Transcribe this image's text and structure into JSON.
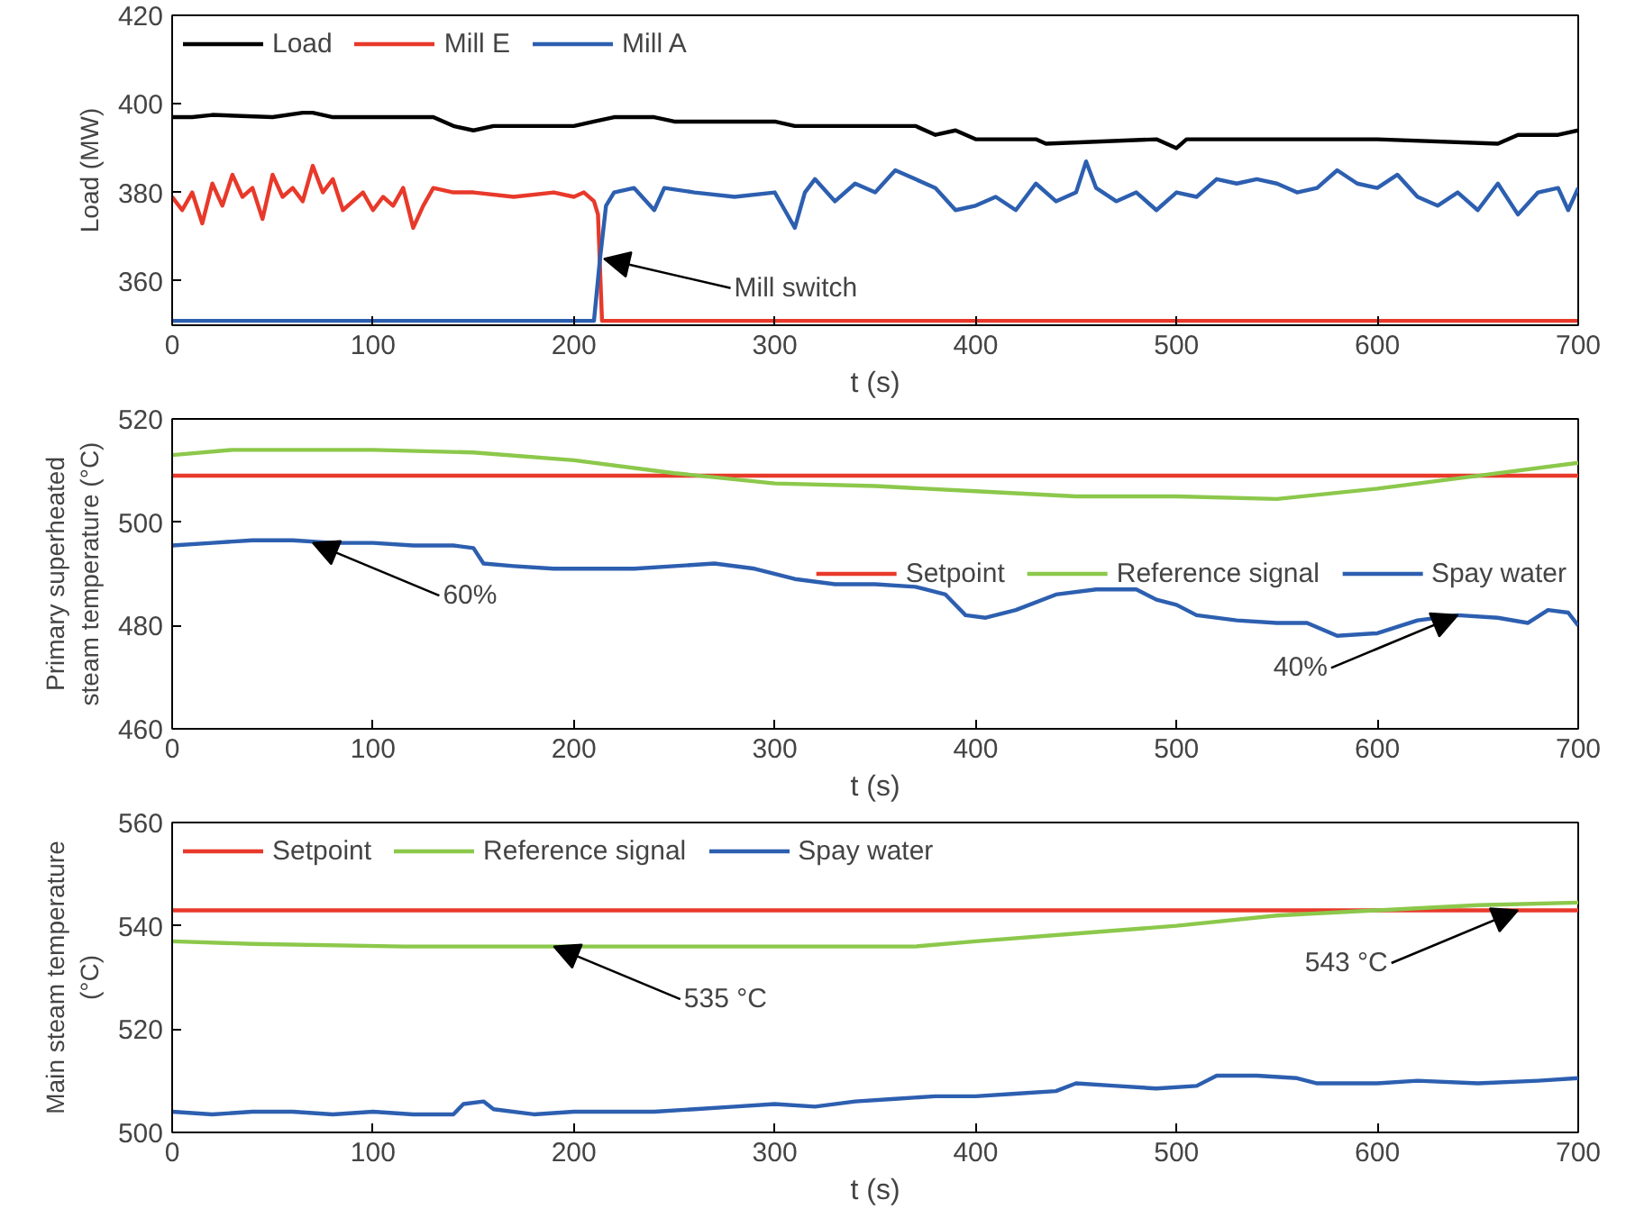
{
  "chart_data": [
    {
      "type": "line",
      "xlabel": "t (s)",
      "ylabel": "Load (MW)",
      "xlim": [
        0,
        700
      ],
      "xticks": [
        0,
        100,
        200,
        300,
        400,
        500,
        600,
        700
      ],
      "ylim": [
        350,
        420
      ],
      "yticks": [
        360,
        380,
        400,
        420
      ],
      "grid": false,
      "legend": "top left",
      "line_style": "solid",
      "marker": "none",
      "annotations": [
        {
          "text": "Mill switch",
          "x": 215,
          "y": 365
        }
      ],
      "series": [
        {
          "name": "Load",
          "color": "#000000",
          "x": [
            0,
            10,
            20,
            50,
            65,
            70,
            80,
            130,
            140,
            150,
            160,
            200,
            210,
            220,
            240,
            250,
            300,
            310,
            370,
            380,
            390,
            400,
            430,
            435,
            490,
            500,
            505,
            600,
            660,
            670,
            690,
            700
          ],
          "values": [
            397,
            397,
            397.5,
            397,
            398,
            398,
            397,
            397,
            395,
            394,
            395,
            395,
            396,
            397,
            397,
            396,
            396,
            395,
            395,
            393,
            394,
            392,
            392,
            391,
            392,
            390,
            392,
            392,
            391,
            393,
            393,
            394
          ]
        },
        {
          "name": "Mill E",
          "color": "#e8392a",
          "x": [
            0,
            5,
            10,
            15,
            20,
            25,
            30,
            35,
            40,
            45,
            50,
            55,
            60,
            65,
            70,
            75,
            80,
            85,
            90,
            95,
            100,
            105,
            110,
            115,
            120,
            125,
            130,
            140,
            150,
            170,
            190,
            200,
            205,
            210,
            212,
            214,
            700
          ],
          "values": [
            379,
            376,
            380,
            373,
            382,
            377,
            384,
            379,
            381,
            374,
            384,
            379,
            381,
            378,
            386,
            380,
            383,
            376,
            378,
            380,
            376,
            379,
            377,
            381,
            372,
            377,
            381,
            380,
            380,
            379,
            380,
            379,
            380,
            378,
            375,
            351,
            351
          ]
        },
        {
          "name": "Mill A",
          "color": "#2d5fb0",
          "x": [
            0,
            210,
            213,
            216,
            220,
            230,
            240,
            245,
            260,
            280,
            300,
            305,
            310,
            315,
            320,
            330,
            340,
            350,
            360,
            370,
            380,
            390,
            400,
            410,
            420,
            430,
            440,
            450,
            455,
            460,
            470,
            480,
            490,
            500,
            510,
            520,
            530,
            540,
            550,
            560,
            570,
            580,
            590,
            600,
            610,
            620,
            630,
            640,
            650,
            660,
            670,
            680,
            690,
            695,
            700
          ],
          "values": [
            351,
            351,
            365,
            377,
            380,
            381,
            376,
            381,
            380,
            379,
            380,
            376,
            372,
            380,
            383,
            378,
            382,
            380,
            385,
            383,
            381,
            376,
            377,
            379,
            376,
            382,
            378,
            380,
            387,
            381,
            378,
            380,
            376,
            380,
            379,
            383,
            382,
            383,
            382,
            380,
            381,
            385,
            382,
            381,
            384,
            379,
            377,
            380,
            376,
            382,
            375,
            380,
            381,
            376,
            381
          ]
        }
      ]
    },
    {
      "type": "line",
      "xlabel": "t (s)",
      "ylabel": "Primary superheated steam temperature (°C)",
      "xlim": [
        0,
        700
      ],
      "xticks": [
        0,
        100,
        200,
        300,
        400,
        500,
        600,
        700
      ],
      "ylim": [
        460,
        520
      ],
      "yticks": [
        460,
        480,
        500,
        520
      ],
      "grid": false,
      "legend": "right",
      "line_style": "solid",
      "marker": "none",
      "annotations": [
        {
          "text": "60%",
          "x": 70,
          "y": 496
        },
        {
          "text": "40%",
          "x": 640,
          "y": 482
        }
      ],
      "series": [
        {
          "name": "Setpoint",
          "color": "#e8392a",
          "x": [
            0,
            700
          ],
          "values": [
            509,
            509
          ]
        },
        {
          "name": "Reference signal",
          "color": "#8cc84b",
          "x": [
            0,
            30,
            60,
            100,
            150,
            200,
            250,
            300,
            350,
            400,
            450,
            500,
            550,
            600,
            650,
            700
          ],
          "values": [
            513,
            514,
            514,
            514,
            513.5,
            512,
            509.5,
            507.5,
            507,
            506,
            505,
            505,
            504.5,
            506.5,
            509,
            511.5
          ]
        },
        {
          "name": "Spay water",
          "color": "#2d5fb0",
          "x": [
            0,
            20,
            40,
            60,
            80,
            100,
            120,
            140,
            150,
            155,
            170,
            190,
            210,
            230,
            250,
            270,
            290,
            310,
            330,
            350,
            370,
            375,
            385,
            395,
            405,
            420,
            440,
            460,
            480,
            490,
            500,
            510,
            530,
            550,
            565,
            580,
            600,
            620,
            640,
            660,
            675,
            685,
            695,
            700
          ],
          "values": [
            495.5,
            496,
            496.5,
            496.5,
            496,
            496,
            495.5,
            495.5,
            495,
            492,
            491.5,
            491,
            491,
            491,
            491.5,
            492,
            491,
            489,
            488,
            488,
            487.5,
            487,
            486,
            482,
            481.5,
            483,
            486,
            487,
            487,
            485,
            484,
            482,
            481,
            480.5,
            480.5,
            478,
            478.5,
            481,
            482,
            481.5,
            480.5,
            483,
            482.5,
            480
          ]
        }
      ]
    },
    {
      "type": "line",
      "xlabel": "t (s)",
      "ylabel": "Main steam temperature (°C)",
      "xlim": [
        0,
        700
      ],
      "xticks": [
        0,
        100,
        200,
        300,
        400,
        500,
        600,
        700
      ],
      "ylim": [
        500,
        560
      ],
      "yticks": [
        500,
        520,
        540,
        560
      ],
      "grid": false,
      "legend": "top left",
      "line_style": "solid",
      "marker": "none",
      "annotations": [
        {
          "text": "535 °C",
          "x": 190,
          "y": 536
        },
        {
          "text": "543 °C",
          "x": 670,
          "y": 543
        }
      ],
      "series": [
        {
          "name": "Setpoint",
          "color": "#e8392a",
          "x": [
            0,
            700
          ],
          "values": [
            543,
            543
          ]
        },
        {
          "name": "Reference signal",
          "color": "#8cc84b",
          "x": [
            0,
            40,
            115,
            370,
            400,
            450,
            500,
            550,
            600,
            650,
            700
          ],
          "values": [
            537,
            536.5,
            536,
            536,
            537,
            538.5,
            540,
            542,
            543,
            544,
            544.5
          ]
        },
        {
          "name": "Spay water",
          "color": "#2d5fb0",
          "x": [
            0,
            20,
            40,
            60,
            80,
            100,
            120,
            140,
            145,
            155,
            160,
            180,
            200,
            220,
            240,
            260,
            280,
            300,
            320,
            340,
            360,
            380,
            400,
            420,
            440,
            450,
            470,
            490,
            510,
            520,
            540,
            560,
            570,
            600,
            620,
            650,
            680,
            700
          ],
          "values": [
            504,
            503.5,
            504,
            504,
            503.5,
            504,
            503.5,
            503.5,
            505.5,
            506,
            504.5,
            503.5,
            504,
            504,
            504,
            504.5,
            505,
            505.5,
            505,
            506,
            506.5,
            507,
            507,
            507.5,
            508,
            509.5,
            509,
            508.5,
            509,
            511,
            511,
            510.5,
            509.5,
            509.5,
            510,
            509.5,
            510,
            510.5
          ]
        }
      ]
    }
  ]
}
